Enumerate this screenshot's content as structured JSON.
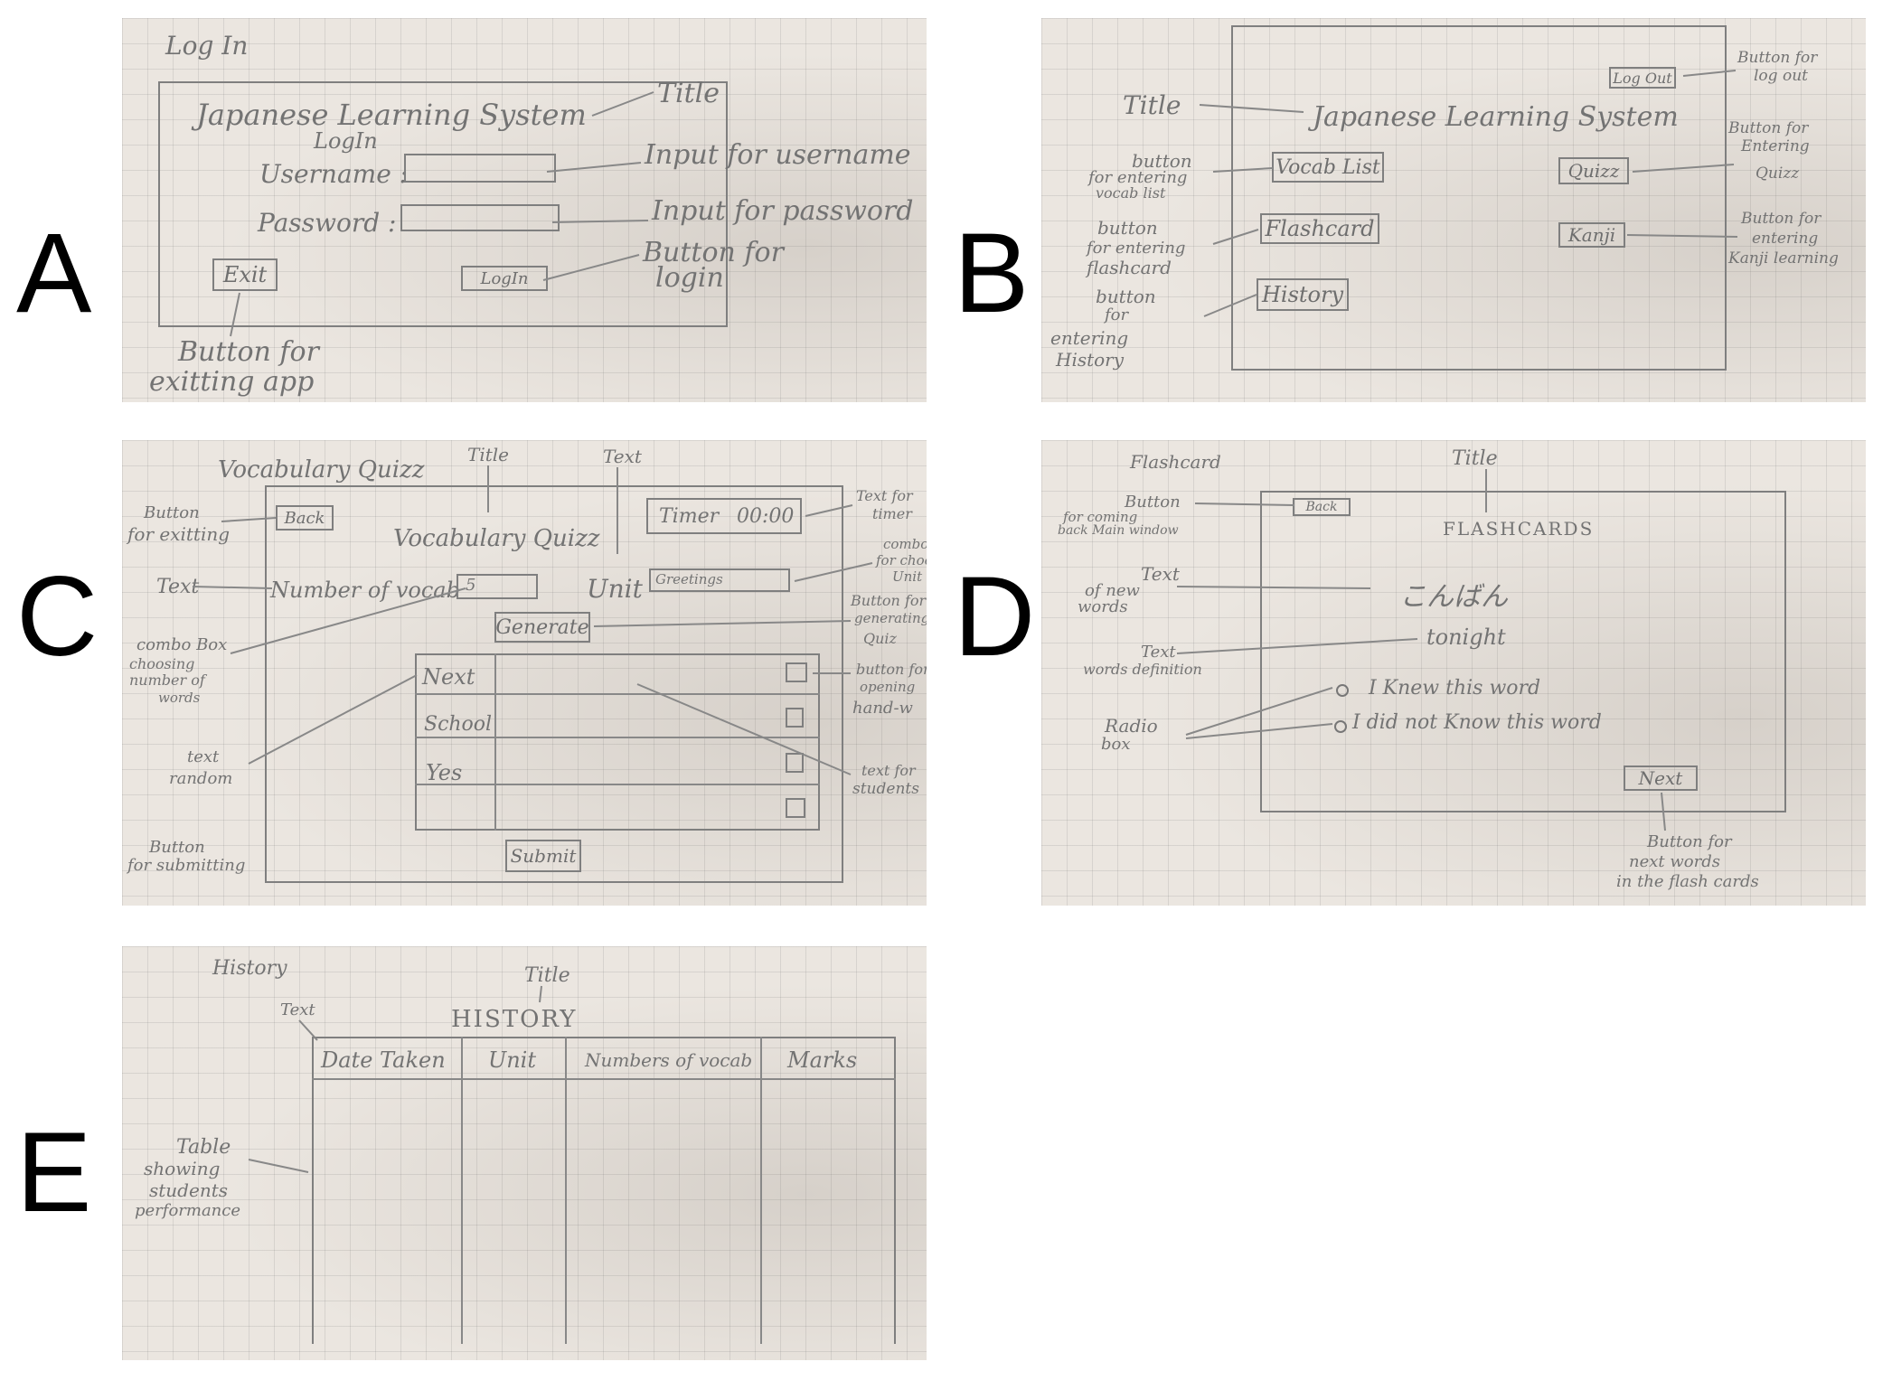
{
  "panels": {
    "A": {
      "letter": "A",
      "screen_name": "Log In",
      "title": "Japanese Learning System",
      "subtitle": "LogIn",
      "username_label": "Username :",
      "password_label": "Password :",
      "exit_label": "Exit",
      "login_label": "LogIn",
      "ann_title": "Title",
      "ann_username": "Input for username",
      "ann_password": "Input for password",
      "ann_login_1": "Button for",
      "ann_login_2": "login",
      "ann_exit_1": "Button for",
      "ann_exit_2": "exitting app"
    },
    "B": {
      "letter": "B",
      "title_label": "Title",
      "title": "Japanese Learning System",
      "logout_label": "Log Out",
      "vocab_label": "Vocab List",
      "flashcard_label": "Flashcard",
      "history_label": "History",
      "quiz_label": "Quizz",
      "kanji_label": "Kanji",
      "ann_logout_1": "Button for",
      "ann_logout_2": "log out",
      "ann_vocab_1": "button",
      "ann_vocab_2": "for entering",
      "ann_vocab_3": "vocab list",
      "ann_flash_1": "button",
      "ann_flash_2": "for entering",
      "ann_flash_3": "flashcard",
      "ann_hist_1": "button",
      "ann_hist_2": "for",
      "ann_hist_3": "entering",
      "ann_hist_4": "History",
      "ann_quiz_1": "Button for",
      "ann_quiz_2": "Entering",
      "ann_quiz_3": "Quizz",
      "ann_kanji_1": "Button for",
      "ann_kanji_2": "entering",
      "ann_kanji_3": "Kanji learning"
    },
    "C": {
      "letter": "C",
      "screen_name": "Vocabulary Quizz",
      "title": "Vocabulary Quizz",
      "back_label": "Back",
      "timer_label": "Timer",
      "timer_value": "00:00",
      "num_vocab_label": "Number of vocab",
      "num_vocab_value": "5",
      "unit_label": "Unit",
      "unit_value": "Greetings",
      "generate_label": "Generate",
      "submit_label": "Submit",
      "words": [
        "Next",
        "School",
        "Yes"
      ],
      "ann_title": "Title",
      "ann_text_top": "Text",
      "ann_back_1": "Button",
      "ann_back_2": "for exitting",
      "ann_text_left": "Text",
      "ann_combo_1": "combo Box",
      "ann_combo_2": "choosing",
      "ann_combo_3": "number of",
      "ann_combo_4": "words",
      "ann_random_1": "text",
      "ann_random_2": "random",
      "ann_submit_1": "Button",
      "ann_submit_2": "for submitting",
      "ann_timer_1": "Text for",
      "ann_timer_2": "timer",
      "ann_unit_1": "combo",
      "ann_unit_2": "for choose",
      "ann_unit_3": "Unit",
      "ann_gen_1": "Button for",
      "ann_gen_2": "generating",
      "ann_gen_3": "Quiz",
      "ann_hand_1": "button for",
      "ann_hand_2": "opening",
      "ann_hand_3": "hand-w",
      "ann_student_1": "text for",
      "ann_student_2": "students"
    },
    "D": {
      "letter": "D",
      "screen_name": "Flashcard",
      "title": "FLASHCARDS",
      "back_label": "Back",
      "word": "こんばん",
      "definition": "tonight",
      "radio_known": "I Knew this word",
      "radio_unknown": "I did not Know this word",
      "next_label": "Next",
      "ann_title": "Title",
      "ann_back_1": "Button",
      "ann_back_2": "for coming",
      "ann_back_3": "back Main window",
      "ann_word_1": "Text",
      "ann_word_2": "of new",
      "ann_word_3": "words",
      "ann_def_1": "Text",
      "ann_def_2": "words definition",
      "ann_radio_1": "Radio",
      "ann_radio_2": "box",
      "ann_next_1": "Button for",
      "ann_next_2": "next words",
      "ann_next_3": "in the flash cards"
    },
    "E": {
      "letter": "E",
      "screen_name": "History",
      "title": "HISTORY",
      "columns": [
        "Date Taken",
        "Unit",
        "Numbers of vocab",
        "Marks"
      ],
      "ann_title": "Title",
      "ann_text": "Text",
      "ann_table_1": "Table",
      "ann_table_2": "showing",
      "ann_table_3": "students",
      "ann_table_4": "performance"
    }
  }
}
